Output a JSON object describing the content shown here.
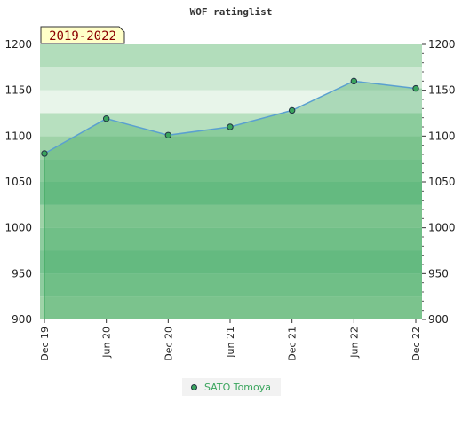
{
  "chart_data": {
    "type": "area",
    "title": "WOF ratinglist",
    "badge": "2019-2022",
    "x": [
      "Dec 19",
      "Jun 20",
      "Dec 20",
      "Jun 21",
      "Dec 21",
      "Jun 22",
      "Dec 22"
    ],
    "series": [
      {
        "name": "SATO Tomoya",
        "values": [
          1081,
          1119,
          1101,
          1110,
          1128,
          1160,
          1152
        ]
      }
    ],
    "ylim": [
      900,
      1200
    ],
    "yticks": [
      900,
      950,
      1000,
      1050,
      1100,
      1150,
      1200
    ],
    "grid": true,
    "legend": "bottom-center",
    "colors": {
      "line": "#5aa0d0",
      "marker": "#3aa55d",
      "legend_text": "#3aa55d",
      "badge_bg": "#ffffc8",
      "badge_text": "#8b0000",
      "bands": [
        "#9fd3a8",
        "#8ecc9f",
        "#7cc594",
        "#8ecc9f",
        "#9fd3a8",
        "#7cc594",
        "#8ecc9f",
        "#9fd3a8",
        "#b7e0bf",
        "#e8f5ea",
        "#cfe9d4",
        "#b2ddbb"
      ]
    }
  }
}
